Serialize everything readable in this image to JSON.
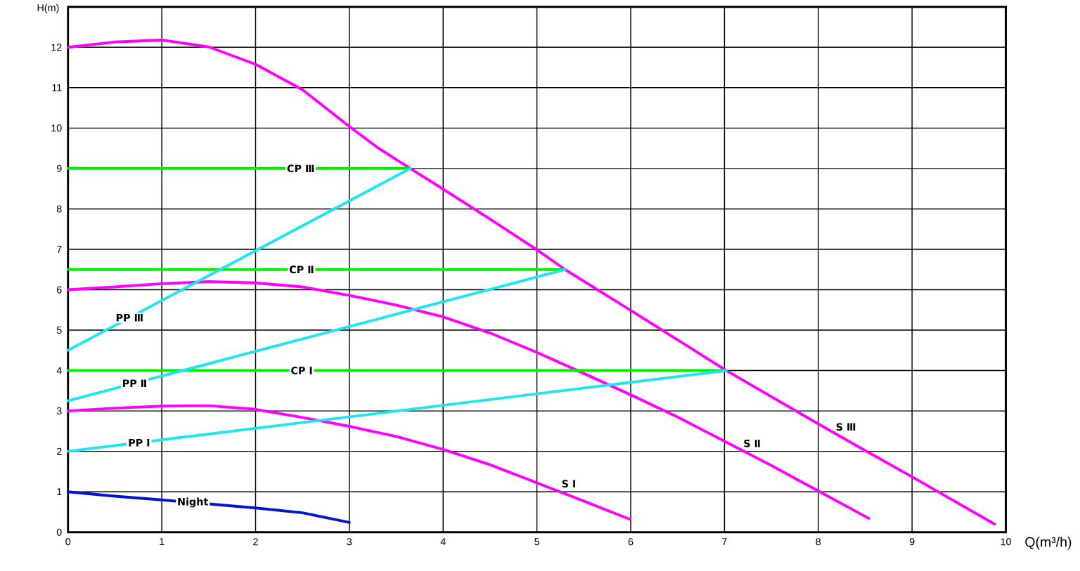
{
  "chart_data": {
    "type": "line",
    "xlabel": "Q(m³/h)",
    "ylabel": "H(m)",
    "xlim": [
      0,
      10
    ],
    "ylim": [
      0,
      13
    ],
    "xticks": [
      0,
      1,
      2,
      3,
      4,
      5,
      6,
      7,
      8,
      9,
      10
    ],
    "yticks": [
      0,
      1,
      2,
      3,
      4,
      5,
      6,
      7,
      8,
      9,
      10,
      11,
      12
    ],
    "grid": true,
    "series": [
      {
        "name": "S Ⅲ",
        "color": "#ff00ff",
        "x": [
          0,
          0.5,
          1,
          1.5,
          2,
          2.5,
          3,
          3.3,
          3.65,
          4,
          4.5,
          5,
          5.3,
          6,
          7.02,
          8,
          8.5,
          9,
          9.88
        ],
        "values": [
          12,
          12.13,
          12.18,
          12.01,
          11.58,
          10.95,
          10.04,
          9.52,
          9,
          8.49,
          7.75,
          6.99,
          6.5,
          5.49,
          4,
          2.68,
          2.02,
          1.37,
          0.2
        ]
      },
      {
        "name": "S Ⅱ",
        "color": "#ff00ff",
        "x": [
          0,
          0.5,
          1,
          1.5,
          2,
          2.5,
          3,
          3.5,
          4,
          4.5,
          5,
          5.5,
          6,
          6.5,
          7,
          7.5,
          8,
          8.54
        ],
        "values": [
          6,
          6.07,
          6.15,
          6.2,
          6.17,
          6.07,
          5.86,
          5.62,
          5.33,
          4.93,
          4.45,
          3.93,
          3.4,
          2.85,
          2.25,
          1.65,
          1.02,
          0.34
        ]
      },
      {
        "name": "S Ⅰ",
        "color": "#ff00ff",
        "x": [
          0,
          0.5,
          1,
          1.5,
          2,
          2.5,
          3,
          3.5,
          4,
          4.5,
          5,
          5.5,
          5.99
        ],
        "values": [
          3,
          3.07,
          3.12,
          3.13,
          3.04,
          2.84,
          2.62,
          2.37,
          2.05,
          1.67,
          1.22,
          0.77,
          0.32
        ]
      },
      {
        "name": "Night",
        "color": "#0014d2",
        "x": [
          0,
          0.5,
          1,
          1.5,
          2,
          2.5,
          3
        ],
        "values": [
          1,
          0.89,
          0.8,
          0.7,
          0.6,
          0.48,
          0.24
        ]
      },
      {
        "name": "CP Ⅲ",
        "color": "#00ee00",
        "x": [
          0,
          3.65
        ],
        "values": [
          9,
          9
        ]
      },
      {
        "name": "CP Ⅱ",
        "color": "#00ee00",
        "x": [
          0,
          5.3
        ],
        "values": [
          6.5,
          6.5
        ]
      },
      {
        "name": "CP Ⅰ",
        "color": "#00ee00",
        "x": [
          0,
          7.02
        ],
        "values": [
          4,
          4
        ]
      },
      {
        "name": "PP Ⅲ",
        "color": "#1ee6f0",
        "x": [
          0,
          3.65
        ],
        "values": [
          4.5,
          9
        ]
      },
      {
        "name": "PP Ⅱ",
        "color": "#1ee6f0",
        "x": [
          0,
          5.3
        ],
        "values": [
          3.25,
          6.5
        ]
      },
      {
        "name": "PP Ⅰ",
        "color": "#1ee6f0",
        "x": [
          0,
          7.02
        ],
        "values": [
          2,
          4
        ]
      }
    ]
  }
}
